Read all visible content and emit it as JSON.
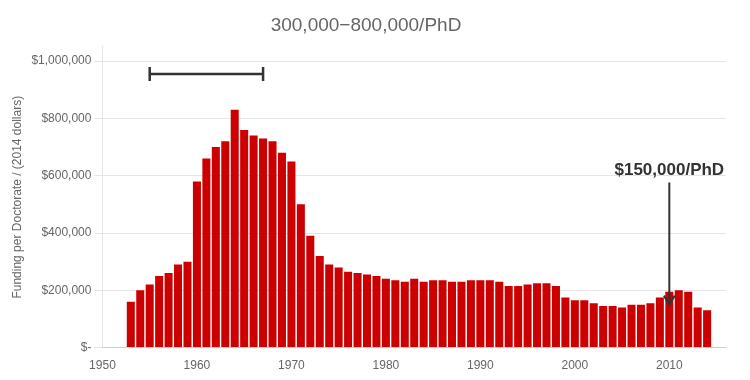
{
  "chart_data": {
    "type": "bar",
    "title": "300,000−800,000/PhD",
    "ylabel": "Funding per Doctorate / (2014 dollars)",
    "x": [
      1953,
      1954,
      1955,
      1956,
      1957,
      1958,
      1959,
      1960,
      1961,
      1962,
      1963,
      1964,
      1965,
      1966,
      1967,
      1968,
      1969,
      1970,
      1971,
      1972,
      1973,
      1974,
      1975,
      1976,
      1977,
      1978,
      1979,
      1980,
      1981,
      1982,
      1983,
      1984,
      1985,
      1986,
      1987,
      1988,
      1989,
      1990,
      1991,
      1992,
      1993,
      1994,
      1995,
      1996,
      1997,
      1998,
      1999,
      2000,
      2001,
      2002,
      2003,
      2004,
      2005,
      2006,
      2007,
      2008,
      2009,
      2010,
      2011,
      2012,
      2013,
      2014
    ],
    "values": [
      160000,
      200000,
      220000,
      250000,
      260000,
      290000,
      300000,
      580000,
      660000,
      700000,
      720000,
      830000,
      760000,
      740000,
      730000,
      720000,
      680000,
      650000,
      500000,
      390000,
      320000,
      290000,
      280000,
      265000,
      260000,
      255000,
      250000,
      240000,
      235000,
      230000,
      240000,
      230000,
      235000,
      235000,
      230000,
      230000,
      235000,
      235000,
      235000,
      230000,
      215000,
      215000,
      220000,
      225000,
      225000,
      215000,
      175000,
      165000,
      165000,
      155000,
      145000,
      145000,
      140000,
      150000,
      150000,
      155000,
      175000,
      195000,
      200000,
      195000,
      140000,
      130000
    ],
    "color": "#cc0000",
    "xlim": [
      1950,
      2016
    ],
    "xticks": [
      1950,
      1960,
      1970,
      1980,
      1990,
      2000,
      2010
    ],
    "ylim": [
      0,
      1050000
    ],
    "yticks": [
      {
        "value": 0,
        "label": "$-"
      },
      {
        "value": 200000,
        "label": "$200,000"
      },
      {
        "value": 400000,
        "label": "$400,000"
      },
      {
        "value": 600000,
        "label": "$600,000"
      },
      {
        "value": 800000,
        "label": "$800,000"
      },
      {
        "value": 1000000,
        "label": "$1,000,000"
      }
    ],
    "grid": true,
    "annotations": [
      {
        "text": "$150,000/PhD",
        "x": 2010,
        "y": 150000,
        "text_y": 590000
      }
    ],
    "bracket": {
      "x": [
        1955,
        1967
      ],
      "y": 955000
    }
  }
}
